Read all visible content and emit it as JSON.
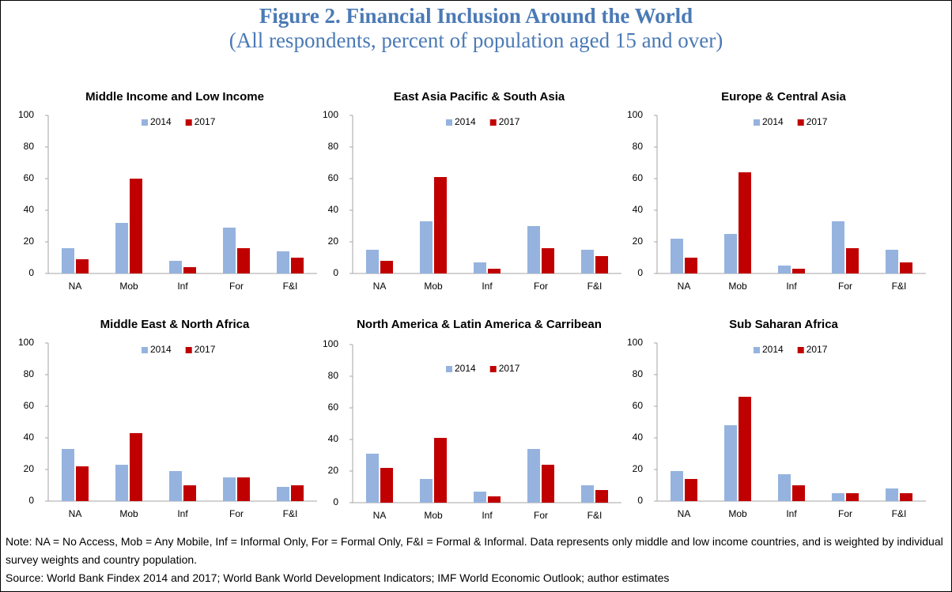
{
  "title": "Figure 2. Financial Inclusion Around the World",
  "subtitle": "(All respondents, percent of population aged 15 and over)",
  "chart_data": [
    {
      "type": "bar",
      "title": "Middle Income and Low Income",
      "categories": [
        "NA",
        "Mob",
        "Inf",
        "For",
        "F&I"
      ],
      "series": [
        {
          "name": "2014",
          "color": "#95b3de",
          "values": [
            16,
            32,
            8,
            29,
            14
          ]
        },
        {
          "name": "2017",
          "color": "#c00000",
          "values": [
            9,
            60,
            4,
            16,
            10
          ]
        }
      ],
      "ylim": [
        0,
        100
      ],
      "yticks": [
        0,
        20,
        40,
        60,
        80,
        100
      ]
    },
    {
      "type": "bar",
      "title": "East Asia Pacific & South Asia",
      "categories": [
        "NA",
        "Mob",
        "Inf",
        "For",
        "F&I"
      ],
      "series": [
        {
          "name": "2014",
          "color": "#95b3de",
          "values": [
            15,
            33,
            7,
            30,
            15
          ]
        },
        {
          "name": "2017",
          "color": "#c00000",
          "values": [
            8,
            61,
            3,
            16,
            11
          ]
        }
      ],
      "ylim": [
        0,
        100
      ],
      "yticks": [
        0,
        20,
        40,
        60,
        80,
        100
      ]
    },
    {
      "type": "bar",
      "title": "Europe & Central Asia",
      "categories": [
        "NA",
        "Mob",
        "Inf",
        "For",
        "F&I"
      ],
      "series": [
        {
          "name": "2014",
          "color": "#95b3de",
          "values": [
            22,
            25,
            5,
            33,
            15
          ]
        },
        {
          "name": "2017",
          "color": "#c00000",
          "values": [
            10,
            64,
            3,
            16,
            7
          ]
        }
      ],
      "ylim": [
        0,
        100
      ],
      "yticks": [
        0,
        20,
        40,
        60,
        80,
        100
      ]
    },
    {
      "type": "bar",
      "title": "Middle East & North Africa",
      "categories": [
        "NA",
        "Mob",
        "Inf",
        "For",
        "F&I"
      ],
      "series": [
        {
          "name": "2014",
          "color": "#95b3de",
          "values": [
            33,
            23,
            19,
            15,
            9
          ]
        },
        {
          "name": "2017",
          "color": "#c00000",
          "values": [
            22,
            43,
            10,
            15,
            10
          ]
        }
      ],
      "ylim": [
        0,
        100
      ],
      "yticks": [
        0,
        20,
        40,
        60,
        80,
        100
      ]
    },
    {
      "type": "bar",
      "title": "North America & Latin America & Carribean",
      "categories": [
        "NA",
        "Mob",
        "Inf",
        "For",
        "F&I"
      ],
      "series": [
        {
          "name": "2014",
          "color": "#95b3de",
          "values": [
            31,
            15,
            7,
            34,
            11
          ]
        },
        {
          "name": "2017",
          "color": "#c00000",
          "values": [
            22,
            41,
            4,
            24,
            8
          ]
        }
      ],
      "ylim": [
        0,
        100
      ],
      "yticks": [
        0,
        20,
        40,
        60,
        80,
        100
      ]
    },
    {
      "type": "bar",
      "title": "Sub Saharan Africa",
      "categories": [
        "NA",
        "Mob",
        "Inf",
        "For",
        "F&I"
      ],
      "series": [
        {
          "name": "2014",
          "color": "#95b3de",
          "values": [
            19,
            48,
            17,
            5,
            8
          ]
        },
        {
          "name": "2017",
          "color": "#c00000",
          "values": [
            14,
            66,
            10,
            5,
            5
          ]
        }
      ],
      "ylim": [
        0,
        100
      ],
      "yticks": [
        0,
        20,
        40,
        60,
        80,
        100
      ]
    }
  ],
  "notes": [
    "Note: NA = No Access, Mob = Any Mobile, Inf = Informal Only, For = Formal Only, F&I = Formal & Informal. Data represents only middle and low income countries, and is weighted by individual survey weights and country population.",
    "Source: World Bank Findex 2014 and 2017; World Bank World Development Indicators; IMF World Economic Outlook; author estimates"
  ]
}
